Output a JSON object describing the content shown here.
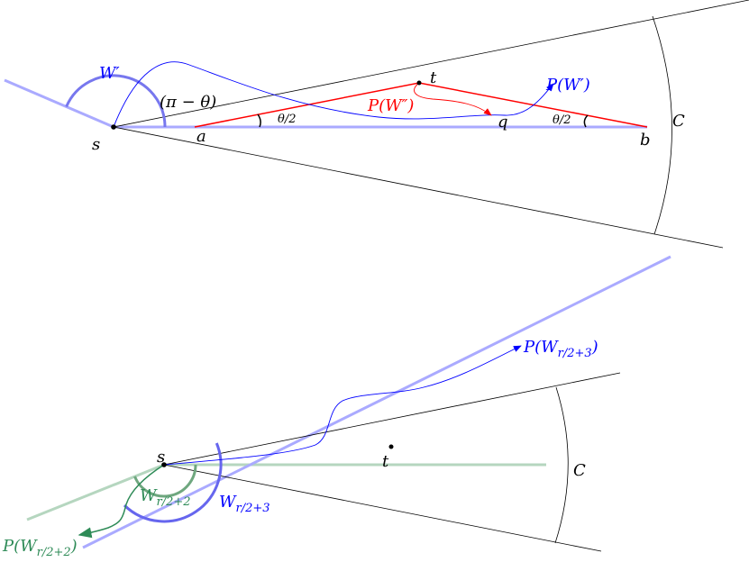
{
  "colors": {
    "black": "#000000",
    "red": "#ff0000",
    "blue": "#0000ff",
    "light_blue": "#aaaaff",
    "mid_blue": "#7777ee",
    "green": "#2e8b57",
    "light_green": "#b5d6bf"
  },
  "top": {
    "label_W_prime": "W′",
    "label_pi_minus_theta": "(π − θ)",
    "label_s": "s",
    "label_a": "a",
    "label_t": "t",
    "label_q": "q",
    "label_b": "b",
    "label_C": "C",
    "label_theta_half_left": "θ/2",
    "label_theta_half_right": "θ/2",
    "label_P_W_double_prime": "P(W″)",
    "label_P_W_prime": "P(W′)"
  },
  "bottom": {
    "label_s": "s",
    "label_t": "t",
    "label_C": "C",
    "label_P_W_r3": {
      "main": "P(W",
      "sub": "r/2+3",
      "close": ")"
    },
    "label_W_r3": {
      "main": "W",
      "sub": "r/2+3"
    },
    "label_W_r2": {
      "main": "W",
      "sub": "r/2+2"
    },
    "label_P_W_r2": {
      "main": "P(W",
      "sub": "r/2+2",
      "close": ")"
    }
  }
}
